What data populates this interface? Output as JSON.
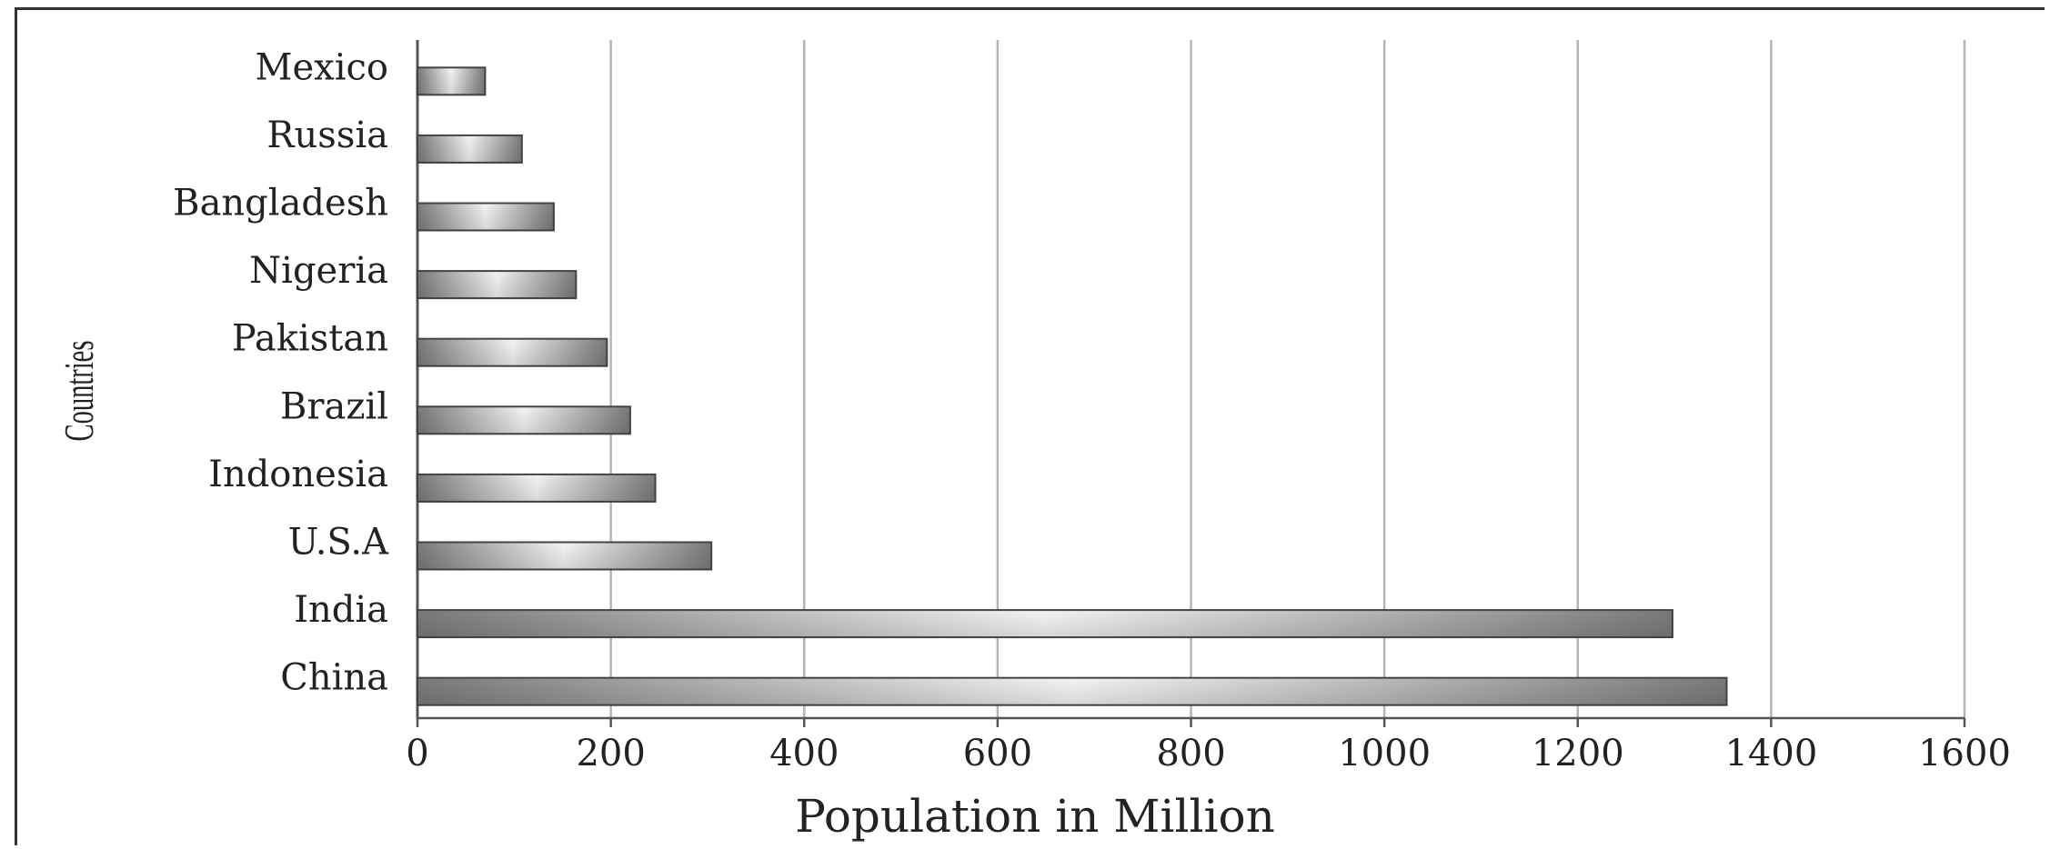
{
  "chart_data": {
    "type": "bar",
    "orientation": "horizontal",
    "categories": [
      "Mexico",
      "Russia",
      "Bangladesh",
      "Nigeria",
      "Pakistan",
      "Brazil",
      "Indonesia",
      "U.S.A",
      "India",
      "China"
    ],
    "values": [
      70,
      108,
      141,
      164,
      196,
      220,
      246,
      304,
      1298,
      1354
    ],
    "xlabel": "Population in Million",
    "ylabel": "Countries",
    "xlim": [
      0,
      1600
    ],
    "xticks": [
      "0",
      "200",
      "400",
      "600",
      "800",
      "1000",
      "1200",
      "1400",
      "1600"
    ],
    "grid": "vertical",
    "colors": {
      "bar_edge": "#444444",
      "bar_dark": "#7a7a7a",
      "bar_light": "#f4f4f4",
      "grid": "#b5b5b5",
      "axis": "#555555"
    }
  }
}
